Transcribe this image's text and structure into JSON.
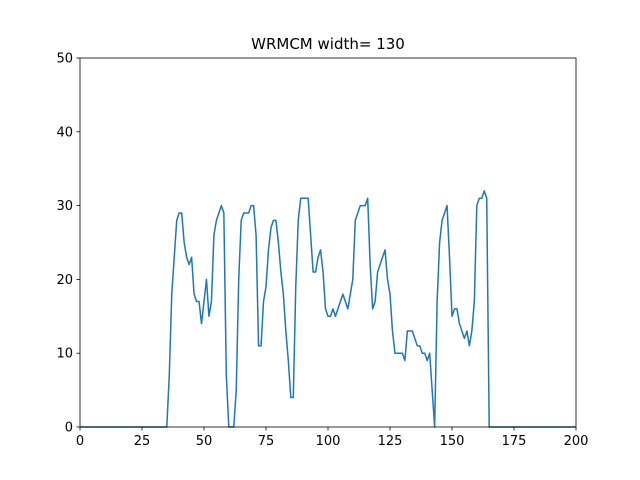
{
  "chart_data": {
    "type": "line",
    "title": "WRMCM width= 130",
    "x": [
      0,
      1,
      2,
      3,
      4,
      5,
      6,
      7,
      8,
      9,
      10,
      11,
      12,
      13,
      14,
      15,
      16,
      17,
      18,
      19,
      20,
      21,
      22,
      23,
      24,
      25,
      26,
      27,
      28,
      29,
      30,
      31,
      32,
      33,
      34,
      35,
      36,
      37,
      38,
      39,
      40,
      41,
      42,
      43,
      44,
      45,
      46,
      47,
      48,
      49,
      50,
      51,
      52,
      53,
      54,
      55,
      56,
      57,
      58,
      59,
      60,
      61,
      62,
      63,
      64,
      65,
      66,
      67,
      68,
      69,
      70,
      71,
      72,
      73,
      74,
      75,
      76,
      77,
      78,
      79,
      80,
      81,
      82,
      83,
      84,
      85,
      86,
      87,
      88,
      89,
      90,
      91,
      92,
      93,
      94,
      95,
      96,
      97,
      98,
      99,
      100,
      101,
      102,
      103,
      104,
      105,
      106,
      107,
      108,
      109,
      110,
      111,
      112,
      113,
      114,
      115,
      116,
      117,
      118,
      119,
      120,
      121,
      122,
      123,
      124,
      125,
      126,
      127,
      128,
      129,
      130,
      131,
      132,
      133,
      134,
      135,
      136,
      137,
      138,
      139,
      140,
      141,
      142,
      143,
      144,
      145,
      146,
      147,
      148,
      149,
      150,
      151,
      152,
      153,
      154,
      155,
      156,
      157,
      158,
      159,
      160,
      161,
      162,
      163,
      164,
      165,
      166,
      167,
      168,
      169,
      170,
      171,
      172,
      173,
      174,
      175,
      176,
      177,
      178,
      179,
      180,
      181,
      182,
      183,
      184,
      185,
      186,
      187,
      188,
      189,
      190,
      191,
      192,
      193,
      194,
      195,
      196,
      197,
      198,
      199,
      200
    ],
    "series": [
      {
        "color": "#1f77b4",
        "values": [
          0,
          0,
          0,
          0,
          0,
          0,
          0,
          0,
          0,
          0,
          0,
          0,
          0,
          0,
          0,
          0,
          0,
          0,
          0,
          0,
          0,
          0,
          0,
          0,
          0,
          0,
          0,
          0,
          0,
          0,
          0,
          0,
          0,
          0,
          0,
          0,
          7,
          18,
          23,
          28,
          29,
          29,
          25,
          23,
          22,
          23,
          18,
          17,
          17,
          14,
          17,
          20,
          15,
          17,
          26,
          28,
          29,
          30,
          29,
          7,
          0,
          0,
          0,
          5,
          20,
          28,
          29,
          29,
          29,
          30,
          30,
          26,
          11,
          11,
          17,
          19,
          24,
          27,
          28,
          28,
          25,
          21,
          18,
          13,
          9,
          4,
          4,
          19,
          28,
          31,
          31,
          31,
          31,
          26,
          21,
          21,
          23,
          24,
          21,
          16,
          15,
          15,
          16,
          15,
          16,
          17,
          18,
          17,
          16,
          18,
          20,
          28,
          29,
          30,
          30,
          30,
          31,
          22,
          16,
          17,
          21,
          22,
          23,
          24,
          20,
          18,
          13,
          10,
          10,
          10,
          10,
          9,
          13,
          13,
          13,
          12,
          11,
          11,
          10,
          10,
          9,
          10,
          5,
          0,
          17,
          25,
          28,
          29,
          30,
          23,
          15,
          16,
          16,
          14,
          13,
          12,
          13,
          11,
          13,
          17,
          30,
          31,
          31,
          32,
          31,
          0,
          0,
          0,
          0,
          0,
          0,
          0,
          0,
          0,
          0,
          0,
          0,
          0,
          0,
          0,
          0,
          0,
          0,
          0,
          0,
          0,
          0,
          0,
          0,
          0,
          0,
          0,
          0,
          0,
          0,
          0,
          0,
          0,
          0,
          0,
          0
        ]
      }
    ],
    "xlim": [
      0,
      200
    ],
    "xticks": [
      0,
      25,
      50,
      75,
      100,
      125,
      150,
      175,
      200
    ],
    "ylim": [
      0,
      50
    ],
    "yticks": [
      0,
      10,
      20,
      30,
      40,
      50
    ],
    "grid": false
  }
}
